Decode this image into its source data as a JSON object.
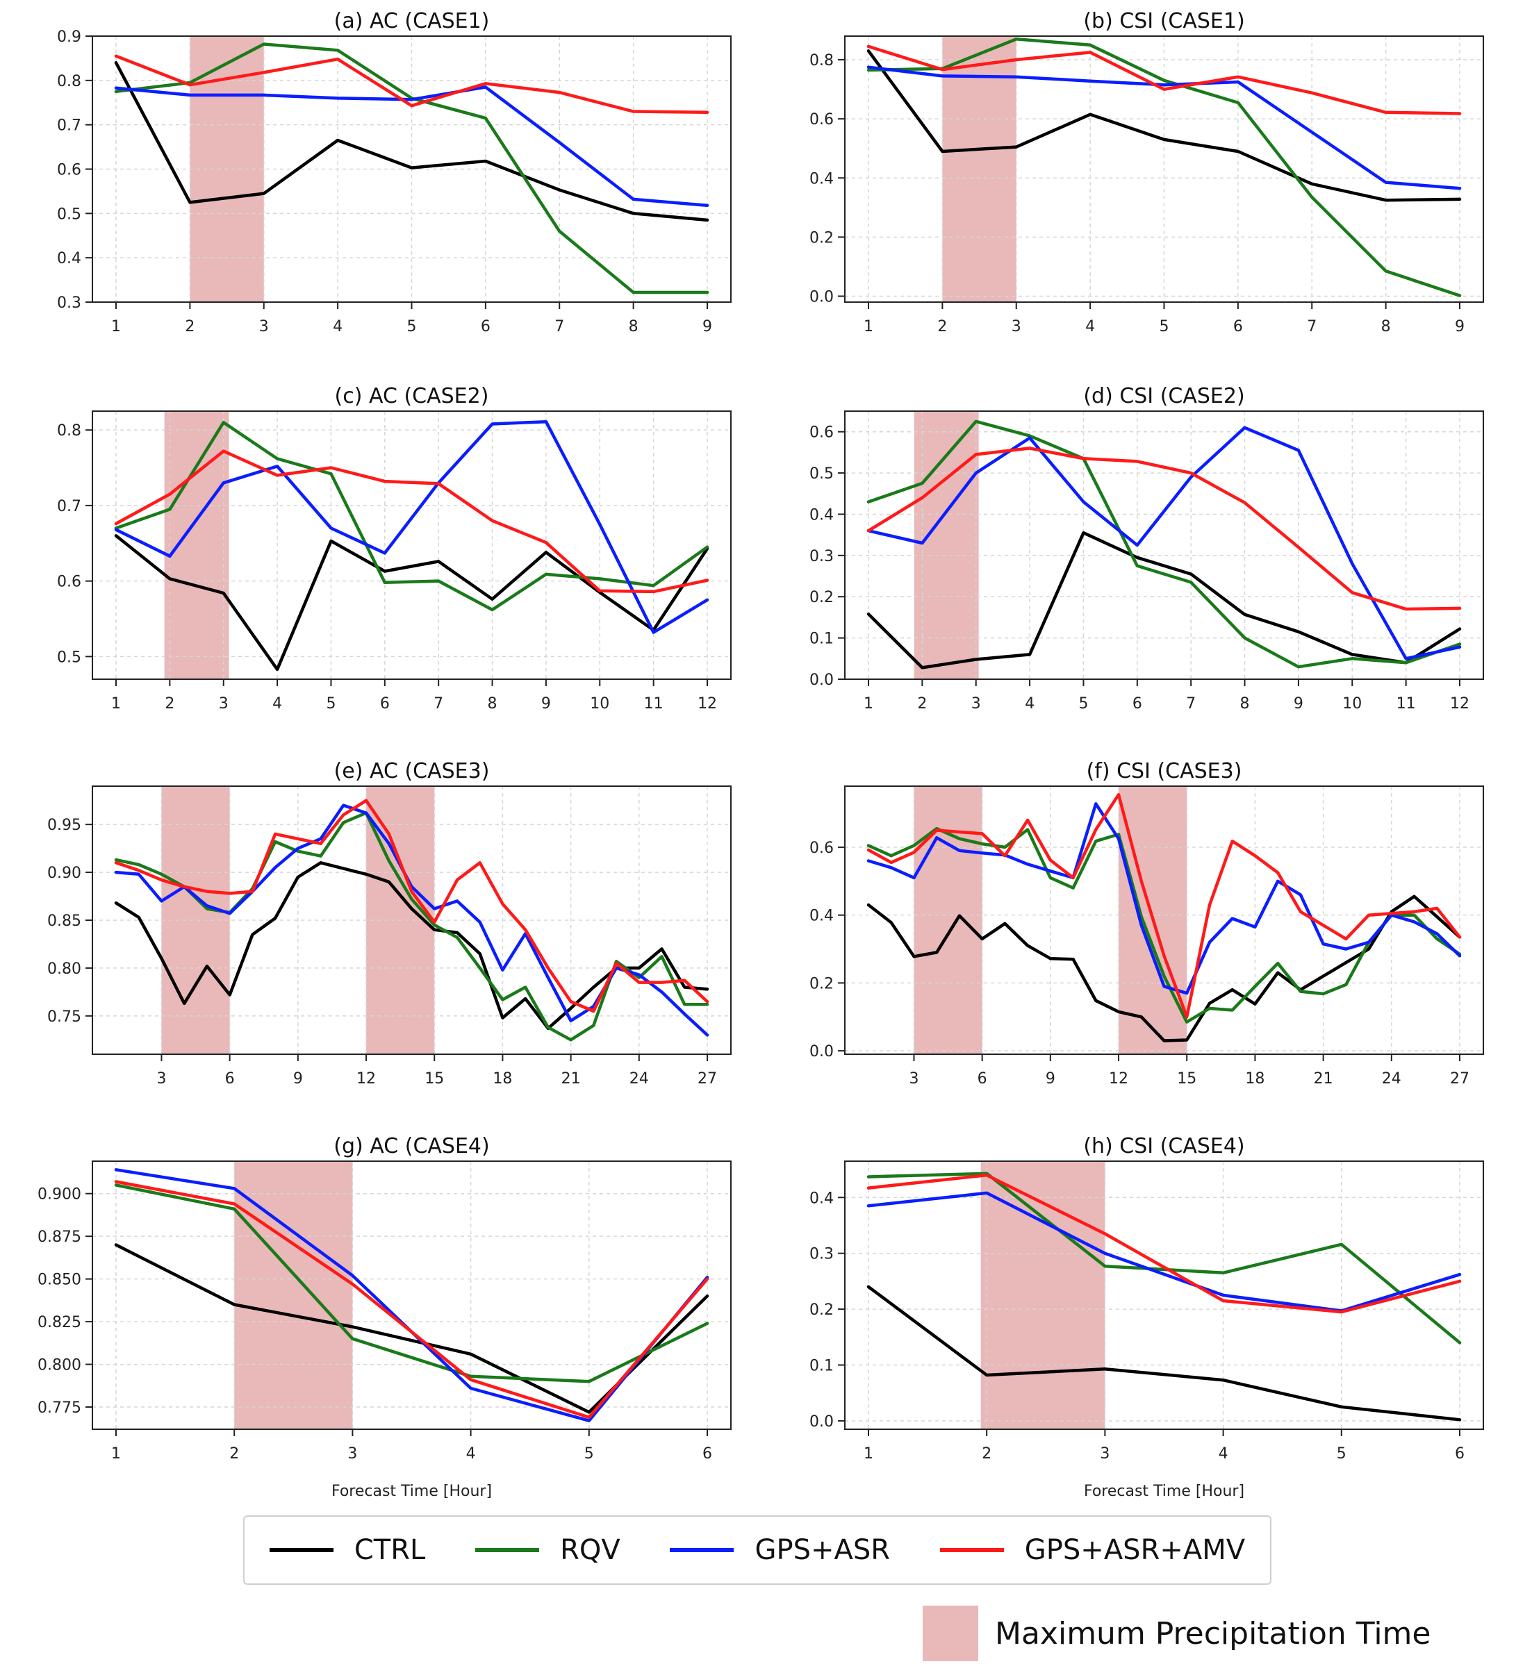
{
  "chart_data": [
    {
      "id": "a",
      "type": "line",
      "title": "(a) AC (CASE1)",
      "xlabel": "",
      "ylabel": "",
      "x": [
        1,
        2,
        3,
        4,
        5,
        6,
        7,
        8,
        9
      ],
      "xticks": [
        1,
        2,
        3,
        4,
        5,
        6,
        7,
        8,
        9
      ],
      "ylim": [
        0.3,
        0.9
      ],
      "yticks": [
        0.3,
        0.4,
        0.5,
        0.6,
        0.7,
        0.8,
        0.9
      ],
      "ytick_labels": [
        "0.3",
        "0.4",
        "0.5",
        "0.6",
        "0.7",
        "0.8",
        "0.9"
      ],
      "shade": [
        [
          2,
          3
        ]
      ],
      "series": [
        {
          "name": "CTRL",
          "values": [
            0.84,
            0.525,
            0.545,
            0.665,
            0.603,
            0.618,
            0.553,
            0.5,
            0.485
          ]
        },
        {
          "name": "RQV",
          "values": [
            0.775,
            0.795,
            0.882,
            0.868,
            0.76,
            0.715,
            0.46,
            0.322,
            0.322
          ]
        },
        {
          "name": "GPS+ASR",
          "values": [
            0.783,
            0.767,
            0.767,
            0.76,
            0.757,
            0.785,
            0.66,
            0.532,
            0.518
          ]
        },
        {
          "name": "GPS+ASR+AMV",
          "values": [
            0.855,
            0.79,
            0.818,
            0.848,
            0.743,
            0.793,
            0.773,
            0.73,
            0.728
          ]
        }
      ]
    },
    {
      "id": "b",
      "type": "line",
      "title": "(b) CSI (CASE1)",
      "xlabel": "",
      "ylabel": "",
      "x": [
        1,
        2,
        3,
        4,
        5,
        6,
        7,
        8,
        9
      ],
      "xticks": [
        1,
        2,
        3,
        4,
        5,
        6,
        7,
        8,
        9
      ],
      "ylim": [
        -0.02,
        0.88
      ],
      "yticks": [
        0,
        0.2,
        0.4,
        0.6,
        0.8
      ],
      "ytick_labels": [
        "0.0",
        "0.2",
        "0.4",
        "0.6",
        "0.8"
      ],
      "shade": [
        [
          2,
          3
        ]
      ],
      "series": [
        {
          "name": "CTRL",
          "values": [
            0.83,
            0.49,
            0.505,
            0.615,
            0.53,
            0.49,
            0.38,
            0.325,
            0.328
          ]
        },
        {
          "name": "RQV",
          "values": [
            0.765,
            0.77,
            0.87,
            0.85,
            0.73,
            0.655,
            0.335,
            0.085,
            0.002
          ]
        },
        {
          "name": "GPS+ASR",
          "values": [
            0.775,
            0.745,
            0.742,
            0.728,
            0.715,
            0.725,
            0.555,
            0.385,
            0.365
          ]
        },
        {
          "name": "GPS+ASR+AMV",
          "values": [
            0.845,
            0.767,
            0.8,
            0.825,
            0.7,
            0.742,
            0.688,
            0.622,
            0.618
          ]
        }
      ]
    },
    {
      "id": "c",
      "type": "line",
      "title": "(c) AC (CASE2)",
      "xlabel": "",
      "ylabel": "",
      "x": [
        1,
        2,
        3,
        4,
        5,
        6,
        7,
        8,
        9,
        10,
        11,
        12
      ],
      "xticks": [
        1,
        2,
        3,
        4,
        5,
        6,
        7,
        8,
        9,
        10,
        11,
        12
      ],
      "ylim": [
        0.47,
        0.825
      ],
      "yticks": [
        0.5,
        0.6,
        0.7,
        0.8
      ],
      "ytick_labels": [
        "0.5",
        "0.6",
        "0.7",
        "0.8"
      ],
      "shade": [
        [
          1.9,
          3.1
        ]
      ],
      "series": [
        {
          "name": "CTRL",
          "values": [
            0.66,
            0.603,
            0.584,
            0.483,
            0.653,
            0.613,
            0.626,
            0.576,
            0.638,
            0.585,
            0.535,
            0.643
          ]
        },
        {
          "name": "RQV",
          "values": [
            0.67,
            0.695,
            0.81,
            0.762,
            0.742,
            0.598,
            0.6,
            0.562,
            0.609,
            0.603,
            0.594,
            0.645
          ]
        },
        {
          "name": "GPS+ASR",
          "values": [
            0.668,
            0.633,
            0.73,
            0.752,
            0.67,
            0.637,
            0.73,
            0.808,
            0.811,
            0.675,
            0.532,
            0.575
          ]
        },
        {
          "name": "GPS+ASR+AMV",
          "values": [
            0.676,
            0.715,
            0.772,
            0.74,
            0.75,
            0.732,
            0.729,
            0.68,
            0.651,
            0.587,
            0.586,
            0.601
          ]
        }
      ]
    },
    {
      "id": "d",
      "type": "line",
      "title": "(d) CSI (CASE2)",
      "xlabel": "",
      "ylabel": "",
      "x": [
        1,
        2,
        3,
        4,
        5,
        6,
        7,
        8,
        9,
        10,
        11,
        12
      ],
      "xticks": [
        1,
        2,
        3,
        4,
        5,
        6,
        7,
        8,
        9,
        10,
        11,
        12
      ],
      "ylim": [
        0,
        0.65
      ],
      "yticks": [
        0,
        0.1,
        0.2,
        0.3,
        0.4,
        0.5,
        0.6
      ],
      "ytick_labels": [
        "0.0",
        "0.1",
        "0.2",
        "0.3",
        "0.4",
        "0.5",
        "0.6"
      ],
      "shade": [
        [
          1.85,
          3.05
        ]
      ],
      "series": [
        {
          "name": "CTRL",
          "values": [
            0.158,
            0.028,
            0.048,
            0.06,
            0.355,
            0.295,
            0.255,
            0.157,
            0.115,
            0.06,
            0.04,
            0.122
          ]
        },
        {
          "name": "RQV",
          "values": [
            0.43,
            0.475,
            0.625,
            0.59,
            0.535,
            0.275,
            0.235,
            0.1,
            0.03,
            0.05,
            0.04,
            0.085
          ]
        },
        {
          "name": "GPS+ASR",
          "values": [
            0.36,
            0.33,
            0.5,
            0.585,
            0.43,
            0.325,
            0.49,
            0.61,
            0.555,
            0.28,
            0.05,
            0.078
          ]
        },
        {
          "name": "GPS+ASR+AMV",
          "values": [
            0.36,
            0.44,
            0.545,
            0.56,
            0.535,
            0.528,
            0.5,
            0.428,
            0.32,
            0.21,
            0.17,
            0.172
          ]
        }
      ]
    },
    {
      "id": "e",
      "type": "line",
      "title": "(e) AC (CASE3)",
      "xlabel": "",
      "ylabel": "",
      "x": [
        1,
        2,
        3,
        4,
        5,
        6,
        7,
        8,
        9,
        10,
        11,
        12,
        13,
        14,
        15,
        16,
        17,
        18,
        19,
        20,
        21,
        22,
        23,
        24,
        25,
        26,
        27
      ],
      "xticks": [
        3,
        6,
        9,
        12,
        15,
        18,
        21,
        24,
        27
      ],
      "ylim": [
        0.71,
        0.99
      ],
      "yticks": [
        0.75,
        0.8,
        0.85,
        0.9,
        0.95
      ],
      "ytick_labels": [
        "0.75",
        "0.80",
        "0.85",
        "0.90",
        "0.95"
      ],
      "shade": [
        [
          3,
          6
        ],
        [
          12,
          15
        ]
      ],
      "series": [
        {
          "name": "CTRL",
          "values": [
            0.868,
            0.853,
            0.81,
            0.763,
            0.802,
            0.772,
            0.835,
            0.852,
            0.895,
            0.91,
            0.904,
            0.898,
            0.89,
            0.862,
            0.84,
            0.837,
            0.815,
            0.748,
            0.768,
            0.737,
            0.758,
            0.78,
            0.8,
            0.8,
            0.82,
            0.78,
            0.778
          ]
        },
        {
          "name": "RQV",
          "values": [
            0.913,
            0.908,
            0.898,
            0.885,
            0.862,
            0.858,
            0.883,
            0.932,
            0.922,
            0.917,
            0.952,
            0.962,
            0.912,
            0.872,
            0.845,
            0.832,
            0.8,
            0.767,
            0.78,
            0.738,
            0.725,
            0.74,
            0.807,
            0.79,
            0.812,
            0.762,
            0.762
          ]
        },
        {
          "name": "GPS+ASR",
          "values": [
            0.9,
            0.898,
            0.87,
            0.885,
            0.865,
            0.857,
            0.88,
            0.905,
            0.925,
            0.935,
            0.97,
            0.962,
            0.93,
            0.885,
            0.862,
            0.87,
            0.848,
            0.798,
            0.836,
            0.79,
            0.745,
            0.76,
            0.8,
            0.793,
            0.775,
            0.752,
            0.73
          ]
        },
        {
          "name": "GPS+ASR+AMV",
          "values": [
            0.91,
            0.902,
            0.892,
            0.885,
            0.88,
            0.878,
            0.88,
            0.94,
            0.935,
            0.93,
            0.96,
            0.975,
            0.94,
            0.88,
            0.848,
            0.892,
            0.91,
            0.867,
            0.84,
            0.8,
            0.765,
            0.755,
            0.805,
            0.785,
            0.785,
            0.787,
            0.765
          ]
        }
      ]
    },
    {
      "id": "f",
      "type": "line",
      "title": "(f) CSI (CASE3)",
      "xlabel": "",
      "ylabel": "",
      "x": [
        1,
        2,
        3,
        4,
        5,
        6,
        7,
        8,
        9,
        10,
        11,
        12,
        13,
        14,
        15,
        16,
        17,
        18,
        19,
        20,
        21,
        22,
        23,
        24,
        25,
        26,
        27
      ],
      "xticks": [
        3,
        6,
        9,
        12,
        15,
        18,
        21,
        24,
        27
      ],
      "ylim": [
        -0.01,
        0.78
      ],
      "yticks": [
        0,
        0.2,
        0.4,
        0.6
      ],
      "ytick_labels": [
        "0.0",
        "0.2",
        "0.4",
        "0.6"
      ],
      "shade": [
        [
          3,
          6
        ],
        [
          12,
          15
        ]
      ],
      "series": [
        {
          "name": "CTRL",
          "values": [
            0.43,
            0.378,
            0.278,
            0.29,
            0.398,
            0.33,
            0.375,
            0.31,
            0.272,
            0.27,
            0.148,
            0.115,
            0.1,
            0.03,
            0.032,
            0.14,
            0.18,
            0.138,
            0.23,
            0.18,
            0.22,
            0.26,
            0.3,
            0.41,
            0.455,
            0.395,
            0.335
          ]
        },
        {
          "name": "RQV",
          "values": [
            0.605,
            0.575,
            0.605,
            0.655,
            0.625,
            0.61,
            0.6,
            0.652,
            0.51,
            0.48,
            0.618,
            0.638,
            0.395,
            0.22,
            0.085,
            0.125,
            0.12,
            0.19,
            0.258,
            0.175,
            0.168,
            0.195,
            0.32,
            0.4,
            0.4,
            0.33,
            0.285
          ]
        },
        {
          "name": "GPS+ASR",
          "values": [
            0.56,
            0.54,
            0.51,
            0.628,
            0.59,
            0.583,
            0.577,
            0.55,
            0.53,
            0.51,
            0.728,
            0.625,
            0.37,
            0.19,
            0.17,
            0.32,
            0.39,
            0.365,
            0.5,
            0.46,
            0.315,
            0.3,
            0.32,
            0.4,
            0.38,
            0.345,
            0.28
          ]
        },
        {
          "name": "GPS+ASR+AMV",
          "values": [
            0.592,
            0.555,
            0.585,
            0.65,
            0.645,
            0.64,
            0.575,
            0.68,
            0.562,
            0.51,
            0.652,
            0.755,
            0.5,
            0.28,
            0.1,
            0.43,
            0.618,
            0.575,
            0.525,
            0.41,
            0.37,
            0.33,
            0.4,
            0.405,
            0.41,
            0.42,
            0.335
          ]
        }
      ]
    },
    {
      "id": "g",
      "type": "line",
      "title": "(g) AC (CASE4)",
      "xlabel": "Forecast Time [Hour]",
      "ylabel": "",
      "x": [
        1,
        2,
        3,
        4,
        5,
        6
      ],
      "xticks": [
        1,
        2,
        3,
        4,
        5,
        6
      ],
      "ylim": [
        0.762,
        0.919
      ],
      "yticks": [
        0.775,
        0.8,
        0.825,
        0.85,
        0.875,
        0.9
      ],
      "ytick_labels": [
        "0.775",
        "0.800",
        "0.825",
        "0.850",
        "0.875",
        "0.900"
      ],
      "shade": [
        [
          2,
          3
        ]
      ],
      "series": [
        {
          "name": "CTRL",
          "values": [
            0.87,
            0.835,
            0.822,
            0.806,
            0.772,
            0.84
          ]
        },
        {
          "name": "RQV",
          "values": [
            0.905,
            0.891,
            0.815,
            0.793,
            0.79,
            0.824
          ]
        },
        {
          "name": "GPS+ASR",
          "values": [
            0.914,
            0.903,
            0.852,
            0.786,
            0.767,
            0.851
          ]
        },
        {
          "name": "GPS+ASR+AMV",
          "values": [
            0.907,
            0.894,
            0.847,
            0.791,
            0.769,
            0.85
          ]
        }
      ]
    },
    {
      "id": "h",
      "type": "line",
      "title": "(h) CSI (CASE4)",
      "xlabel": "Forecast Time [Hour]",
      "ylabel": "",
      "x": [
        1,
        2,
        3,
        4,
        5,
        6
      ],
      "xticks": [
        1,
        2,
        3,
        4,
        5,
        6
      ],
      "ylim": [
        -0.015,
        0.465
      ],
      "yticks": [
        0,
        0.1,
        0.2,
        0.3,
        0.4
      ],
      "ytick_labels": [
        "0.0",
        "0.1",
        "0.2",
        "0.3",
        "0.4"
      ],
      "shade": [
        [
          1.95,
          3
        ]
      ],
      "series": [
        {
          "name": "CTRL",
          "values": [
            0.24,
            0.082,
            0.093,
            0.073,
            0.025,
            0.002
          ]
        },
        {
          "name": "RQV",
          "values": [
            0.437,
            0.443,
            0.277,
            0.265,
            0.316,
            0.14
          ]
        },
        {
          "name": "GPS+ASR",
          "values": [
            0.385,
            0.408,
            0.3,
            0.225,
            0.197,
            0.262
          ]
        },
        {
          "name": "GPS+ASR+AMV",
          "values": [
            0.417,
            0.44,
            0.335,
            0.215,
            0.195,
            0.25
          ]
        }
      ]
    }
  ],
  "colors": {
    "CTRL": "#000000",
    "RQV": "#1a7a1a",
    "GPS+ASR": "#0a1eff",
    "GPS+ASR+AMV": "#ff1a1a",
    "shade": "#e9b8b8",
    "grid": "#d6d6d6",
    "axis": "#222222"
  },
  "legend": {
    "items": [
      "CTRL",
      "RQV",
      "GPS+ASR",
      "GPS+ASR+AMV"
    ]
  },
  "shade_legend": {
    "label": "Maximum Precipitation Time"
  }
}
